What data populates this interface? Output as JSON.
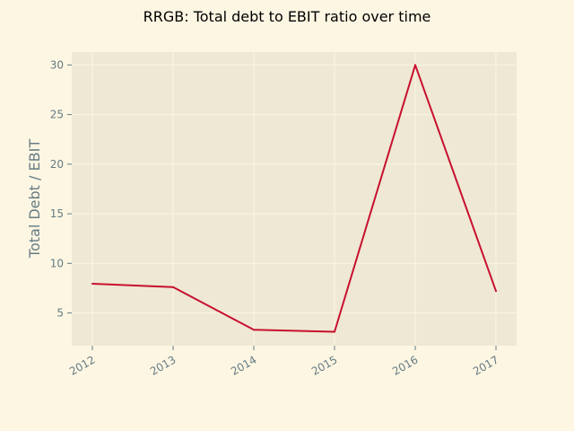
{
  "colors": {
    "figure_background": "#fdf6e3",
    "plot_background": "#eee8d5",
    "grid": "#fdf6e3",
    "line": "#c8102e",
    "tick_text": "#657b83",
    "title_text": "#000000"
  },
  "chart_data": {
    "type": "line",
    "title": "RRGB: Total debt to EBIT ratio over time",
    "xlabel": "",
    "ylabel": "Total Debt / EBIT",
    "x": [
      "2012",
      "2013",
      "2014",
      "2015",
      "2016",
      "2017"
    ],
    "series": [
      {
        "values": [
          7.95,
          7.6,
          3.3,
          3.1,
          30.0,
          7.2
        ]
      }
    ],
    "yticks": [
      5,
      10,
      15,
      20,
      25,
      30
    ],
    "ylim": [
      1.7,
      31.3
    ],
    "grid": true,
    "legend": "none"
  }
}
